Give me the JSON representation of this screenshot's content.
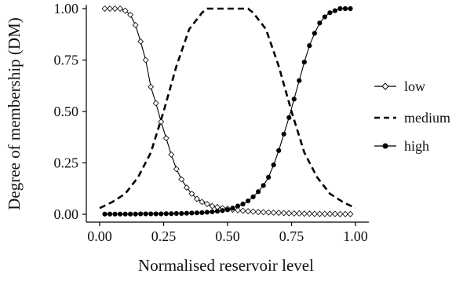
{
  "chart_data": {
    "type": "line",
    "xlabel": "Normalised reservoir level",
    "ylabel": "Degree of membership (DM)",
    "xlim": [
      0,
      1
    ],
    "ylim": [
      0,
      1
    ],
    "x_ticks": [
      "0.00",
      "0.25",
      "0.50",
      "0.75",
      "1.00"
    ],
    "y_ticks": [
      "0.00",
      "0.25",
      "0.50",
      "0.75",
      "1.00"
    ],
    "grid": false,
    "legend_position": "right",
    "x": [
      0.02,
      0.04,
      0.06,
      0.08,
      0.1,
      0.12,
      0.14,
      0.16,
      0.18,
      0.2,
      0.22,
      0.24,
      0.26,
      0.28,
      0.3,
      0.32,
      0.34,
      0.36,
      0.38,
      0.4,
      0.42,
      0.44,
      0.46,
      0.48,
      0.5,
      0.52,
      0.54,
      0.56,
      0.58,
      0.6,
      0.62,
      0.64,
      0.66,
      0.68,
      0.7,
      0.72,
      0.74,
      0.76,
      0.78,
      0.8,
      0.82,
      0.84,
      0.86,
      0.88,
      0.9,
      0.92,
      0.94,
      0.96,
      0.98
    ],
    "series": [
      {
        "name": "low",
        "style": "solid-open-diamond",
        "values": [
          1.0,
          1.0,
          1.0,
          1.0,
          0.99,
          0.97,
          0.92,
          0.84,
          0.75,
          0.62,
          0.54,
          0.45,
          0.37,
          0.29,
          0.22,
          0.17,
          0.13,
          0.1,
          0.075,
          0.06,
          0.05,
          0.04,
          0.035,
          0.03,
          0.027,
          0.023,
          0.02,
          0.017,
          0.015,
          0.013,
          0.011,
          0.01,
          0.009,
          0.008,
          0.007,
          0.006,
          0.005,
          0.004,
          0.004,
          0.003,
          0.003,
          0.002,
          0.002,
          0.002,
          0.002,
          0.002,
          0.001,
          0.001,
          0.001
        ]
      },
      {
        "name": "medium",
        "style": "dashed",
        "x": [
          0.0,
          0.05,
          0.1,
          0.15,
          0.2,
          0.25,
          0.3,
          0.35,
          0.4,
          0.42,
          0.45,
          0.5,
          0.55,
          0.58,
          0.6,
          0.65,
          0.7,
          0.75,
          0.8,
          0.85,
          0.9,
          0.95,
          1.0
        ],
        "values": [
          0.03,
          0.06,
          0.1,
          0.18,
          0.3,
          0.5,
          0.72,
          0.9,
          0.98,
          1.0,
          1.0,
          1.0,
          1.0,
          1.0,
          0.98,
          0.9,
          0.72,
          0.5,
          0.3,
          0.18,
          0.1,
          0.06,
          0.03
        ]
      },
      {
        "name": "high",
        "style": "solid-filled-circle",
        "values": [
          0.001,
          0.001,
          0.001,
          0.001,
          0.001,
          0.001,
          0.001,
          0.002,
          0.002,
          0.002,
          0.002,
          0.002,
          0.003,
          0.003,
          0.004,
          0.004,
          0.005,
          0.006,
          0.007,
          0.008,
          0.01,
          0.012,
          0.015,
          0.018,
          0.022,
          0.03,
          0.04,
          0.05,
          0.065,
          0.085,
          0.11,
          0.14,
          0.18,
          0.24,
          0.31,
          0.39,
          0.47,
          0.56,
          0.65,
          0.74,
          0.82,
          0.88,
          0.93,
          0.96,
          0.98,
          0.99,
          1.0,
          1.0,
          1.0
        ]
      }
    ]
  }
}
